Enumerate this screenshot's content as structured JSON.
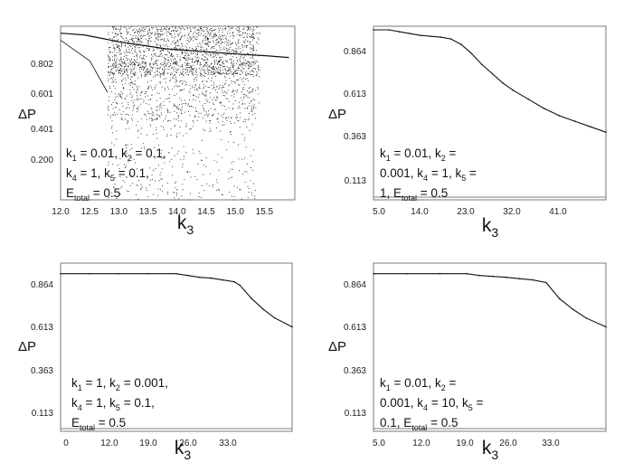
{
  "chart_data": [
    {
      "type": "scatter",
      "title": "",
      "xlabel": "k3",
      "ylabel": "ΔP",
      "xlim": [
        12.0,
        16.0
      ],
      "ylim": [
        0.0,
        1.0
      ],
      "x_ticks": [
        "12.0",
        "12.5",
        "13.0",
        "13.5",
        "14.0",
        "14.5",
        "15.0",
        "15.5"
      ],
      "y_ticks": [
        "0.802",
        "0.601",
        "0.401",
        "0.200"
      ],
      "annotation_lines": [
        "k1 = 0.01,  k2 = 0.1,",
        "k4 = 1, k5 = 0.1,",
        "Etotal = 0.5"
      ],
      "curve": {
        "x": [
          12.0,
          12.4,
          12.7,
          13.0,
          13.4,
          13.8,
          14.2,
          14.6,
          15.0,
          15.5,
          15.9
        ],
        "y": [
          0.96,
          0.95,
          0.93,
          0.91,
          0.89,
          0.87,
          0.86,
          0.85,
          0.84,
          0.83,
          0.82
        ]
      }
    },
    {
      "type": "line",
      "title": "",
      "xlabel": "k3",
      "ylabel": "ΔP",
      "xlim": [
        5.0,
        50.0
      ],
      "ylim": [
        0.05,
        1.0
      ],
      "x_ticks": [
        "5.0",
        "14.0",
        "23.0",
        "32.0",
        "41.0"
      ],
      "y_ticks": [
        "0.864",
        "0.613",
        "0.363",
        "0.113"
      ],
      "annotation_lines": [
        "k1 = 0.01,  k2 =",
        "0.001, k4 = 1, k5 =",
        "1, Etotal = 0.5"
      ],
      "x": [
        5,
        8,
        10,
        12,
        14,
        16,
        18,
        20,
        22,
        24,
        26,
        28,
        30,
        32,
        35,
        38,
        41,
        44,
        47,
        50
      ],
      "y": [
        0.98,
        0.98,
        0.97,
        0.96,
        0.95,
        0.945,
        0.94,
        0.93,
        0.9,
        0.85,
        0.79,
        0.74,
        0.69,
        0.65,
        0.6,
        0.55,
        0.51,
        0.48,
        0.45,
        0.42
      ]
    },
    {
      "type": "line",
      "title": "",
      "xlabel": "k3",
      "ylabel": "ΔP",
      "xlim": [
        0,
        40.0
      ],
      "ylim": [
        0.05,
        1.0
      ],
      "x_ticks": [
        "0",
        "12.0",
        "19.0",
        "26.0",
        "33.0"
      ],
      "y_ticks": [
        "0.864",
        "0.613",
        "0.363",
        "0.113"
      ],
      "annotation_lines": [
        "k1 = 1,  k2 = 0.001,",
        "k4 = 1, k5 = 0.1,",
        "Etotal = 0.5"
      ],
      "x": [
        0,
        5,
        10,
        15,
        20,
        22,
        24,
        26,
        28,
        30,
        31,
        33,
        35,
        37,
        40
      ],
      "y": [
        0.94,
        0.94,
        0.94,
        0.94,
        0.94,
        0.93,
        0.92,
        0.915,
        0.905,
        0.895,
        0.875,
        0.8,
        0.74,
        0.69,
        0.64
      ]
    },
    {
      "type": "line",
      "title": "",
      "xlabel": "k3",
      "ylabel": "ΔP",
      "xlim": [
        5.0,
        40.0
      ],
      "ylim": [
        0.05,
        1.0
      ],
      "x_ticks": [
        "5.0",
        "12.0",
        "19.0",
        "26.0",
        "33.0"
      ],
      "y_ticks": [
        "0.864",
        "0.613",
        "0.363",
        "0.113"
      ],
      "annotation_lines": [
        "k1 = 0.01,  k2 =",
        "0.001, k4 = 10, k5 =",
        "0.1, Etotal = 0.5"
      ],
      "x": [
        5,
        10,
        15,
        19,
        21,
        23,
        25,
        27,
        29,
        31,
        33,
        35,
        37,
        40
      ],
      "y": [
        0.94,
        0.94,
        0.94,
        0.94,
        0.93,
        0.925,
        0.92,
        0.912,
        0.905,
        0.89,
        0.8,
        0.74,
        0.69,
        0.64
      ]
    }
  ]
}
